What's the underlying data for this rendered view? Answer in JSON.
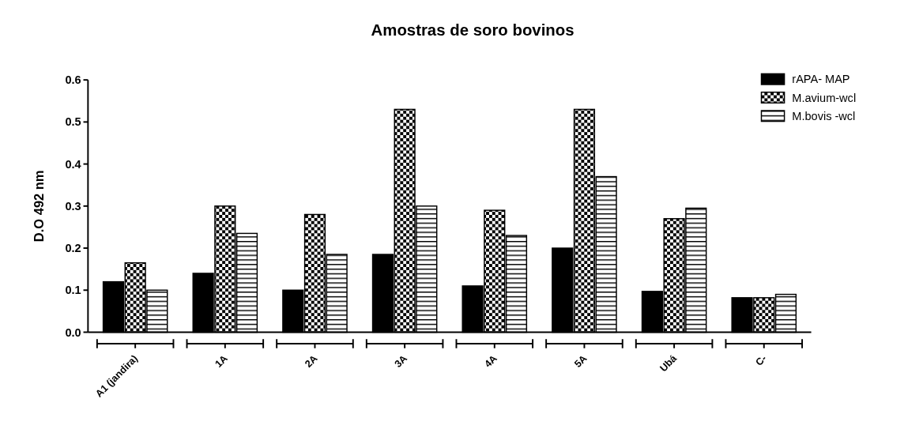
{
  "chart_data": {
    "type": "bar",
    "title": "Amostras de soro bovinos",
    "ylabel": "D.O 492 nm",
    "categories": [
      "A1 (jandira)",
      "1A",
      "2A",
      "3A",
      "4A",
      "5A",
      "Ubá",
      "C-"
    ],
    "series": [
      {
        "name": "rAPA- MAP",
        "color": "#000000",
        "values": [
          0.12,
          0.14,
          0.1,
          0.185,
          0.11,
          0.2,
          0.097,
          0.082
        ]
      },
      {
        "name": "M.avium-wcl",
        "color": "#000000",
        "values": [
          0.165,
          0.3,
          0.28,
          0.53,
          0.29,
          0.53,
          0.27,
          0.082
        ]
      },
      {
        "name": "M.bovis -wcl",
        "color": "#000000",
        "values": [
          0.1,
          0.235,
          0.185,
          0.3,
          0.23,
          0.37,
          0.295,
          0.09
        ]
      }
    ],
    "ylim": [
      0,
      0.6
    ],
    "yticks": [
      {
        "value": 0,
        "label": "0.0"
      },
      {
        "value": 0.1,
        "label": "0.1"
      },
      {
        "value": 0.2,
        "label": "0.2"
      },
      {
        "value": 0.3,
        "label": "0.3"
      },
      {
        "value": 0.4,
        "label": "0.4"
      },
      {
        "value": 0.5,
        "label": "0.5"
      },
      {
        "value": 0.6,
        "label": "0.6"
      }
    ],
    "legend": "top right",
    "grid": false
  }
}
